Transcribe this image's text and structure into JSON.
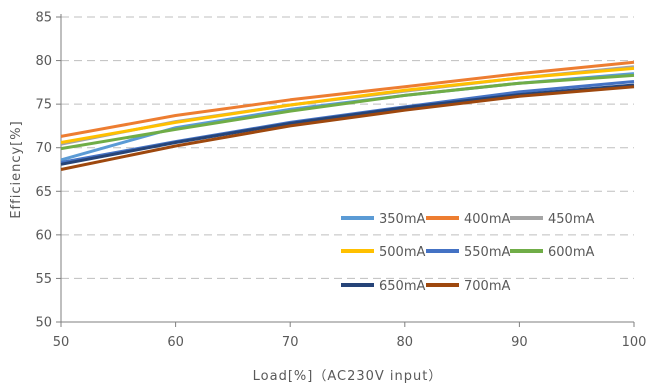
{
  "chart_data": {
    "type": "line",
    "xlabel": "Load[%]（AC230V input）",
    "ylabel": "Efficiency[%]",
    "xlim": [
      50,
      100
    ],
    "ylim": [
      50,
      85
    ],
    "xticks": [
      50,
      60,
      70,
      80,
      90,
      100
    ],
    "yticks": [
      50,
      55,
      60,
      65,
      70,
      75,
      80,
      85
    ],
    "grid": "horizontal-dashed",
    "legend_position": "lower-right",
    "x": [
      50,
      60,
      70,
      80,
      90,
      100
    ],
    "series": [
      {
        "name": "350mA",
        "color": "#5B9BD5",
        "values": [
          68.6,
          72.3,
          74.4,
          76.0,
          77.4,
          78.5
        ]
      },
      {
        "name": "400mA",
        "color": "#ED7D31",
        "values": [
          71.3,
          73.7,
          75.5,
          77.0,
          78.5,
          79.8
        ]
      },
      {
        "name": "450mA",
        "color": "#A5A5A5",
        "values": [
          70.4,
          73.0,
          74.9,
          76.5,
          78.0,
          79.3
        ]
      },
      {
        "name": "500mA",
        "color": "#FFC000",
        "values": [
          70.6,
          72.9,
          74.9,
          76.6,
          78.0,
          79.1
        ]
      },
      {
        "name": "550mA",
        "color": "#4472C4",
        "values": [
          68.3,
          70.7,
          72.9,
          74.7,
          76.4,
          77.6
        ]
      },
      {
        "name": "600mA",
        "color": "#70AD47",
        "values": [
          69.9,
          72.1,
          74.2,
          76.0,
          77.4,
          78.3
        ]
      },
      {
        "name": "650mA",
        "color": "#264478",
        "values": [
          68.1,
          70.6,
          72.8,
          74.6,
          76.1,
          77.2
        ]
      },
      {
        "name": "700mA",
        "color": "#9E480E",
        "values": [
          67.5,
          70.2,
          72.5,
          74.3,
          75.9,
          77.0
        ]
      }
    ]
  }
}
